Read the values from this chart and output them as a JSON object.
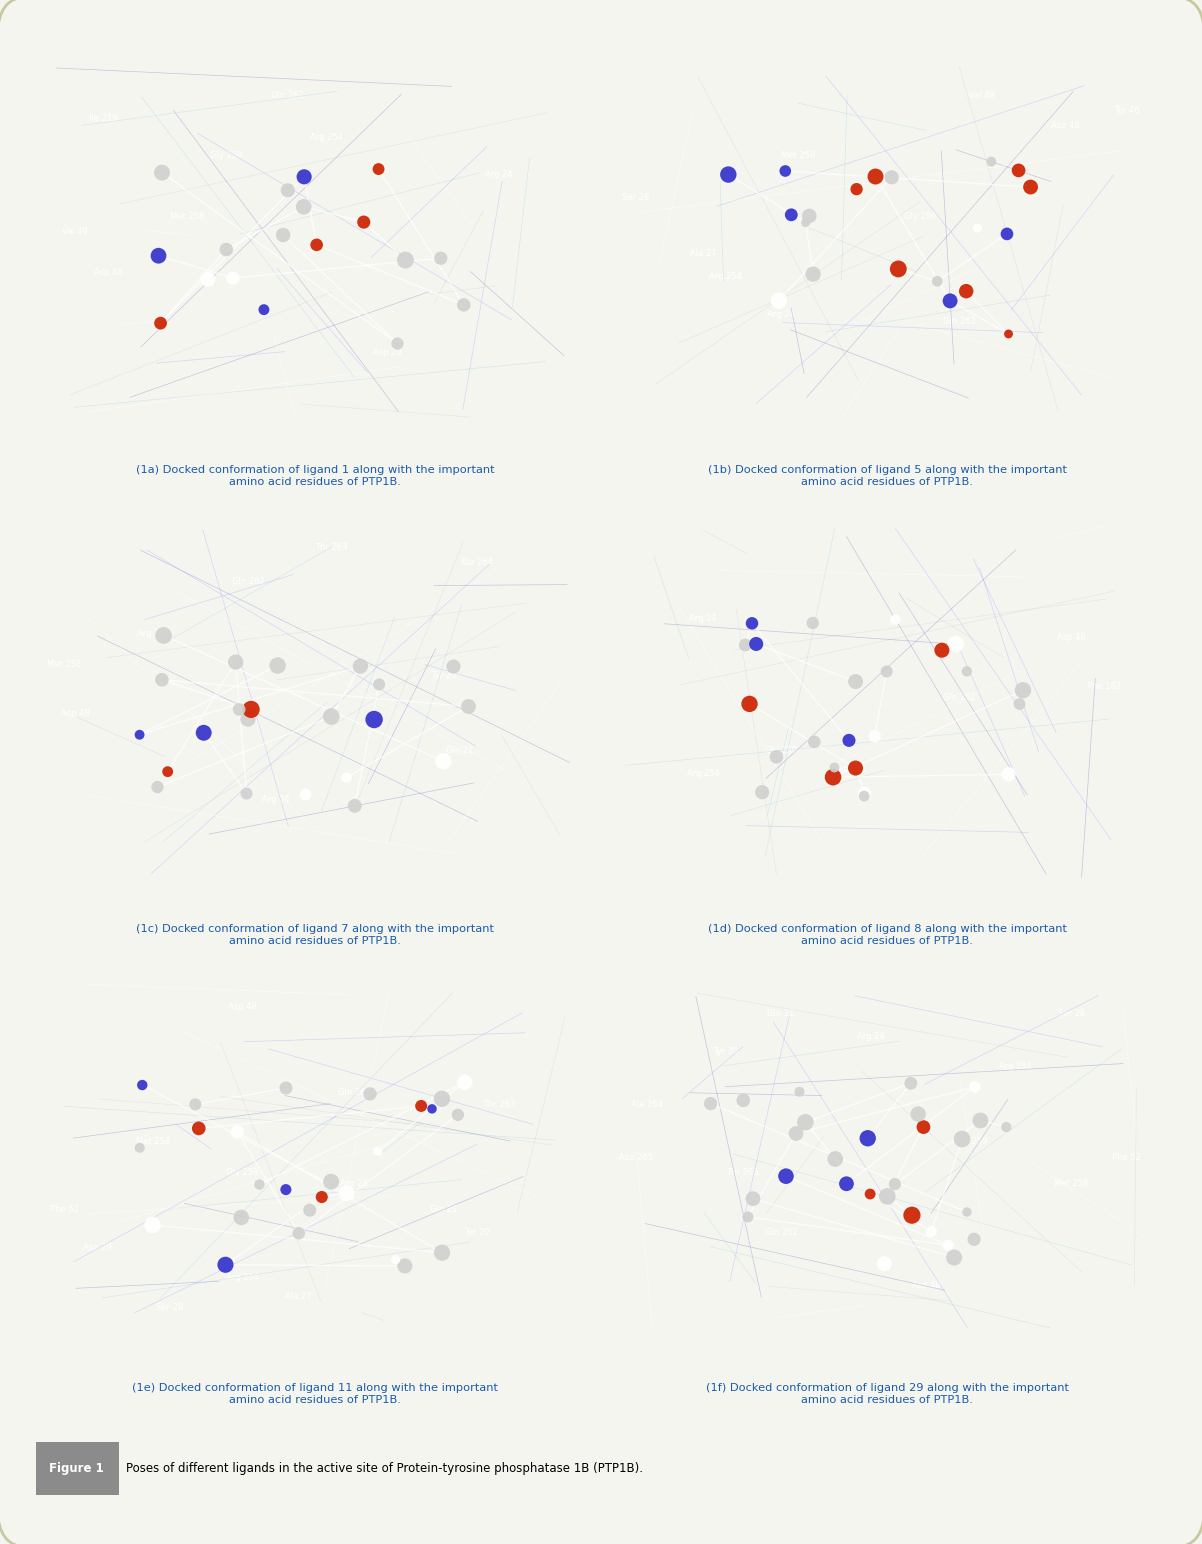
{
  "figure_background": "#f5f5f0",
  "panel_background": "#000000",
  "border_color": "#c8c8a0",
  "figure_width": 12.02,
  "figure_height": 15.44,
  "panels": [
    {
      "label": "(1a) Docked conformation of ligand 1 along with the important\namino acid residues of PTP1B.",
      "row": 0,
      "col": 0
    },
    {
      "label": "(1b) Docked conformation of ligand 5 along with the important\namino acid residues of PTP1B.",
      "row": 0,
      "col": 1
    },
    {
      "label": "(1c) Docked conformation of ligand 7 along with the important\namino acid residues of PTP1B.",
      "row": 1,
      "col": 0
    },
    {
      "label": "(1d) Docked conformation of ligand 8 along with the important\namino acid residues of PTP1B.",
      "row": 1,
      "col": 1
    },
    {
      "label": "(1e) Docked conformation of ligand 11 along with the important\namino acid residues of PTP1B.",
      "row": 2,
      "col": 0
    },
    {
      "label": "(1f) Docked conformation of ligand 29 along with the important\namino acid residues of PTP1B.",
      "row": 2,
      "col": 1
    }
  ],
  "figure_label": "Figure 1",
  "figure_caption": "Poses of different ligands in the active site of Protein-tyrosine phosphatase 1B (PTP1B).",
  "caption_color": "#1a5aaa",
  "figure_label_bg": "#8b8b8b",
  "figure_label_color": "#ffffff"
}
